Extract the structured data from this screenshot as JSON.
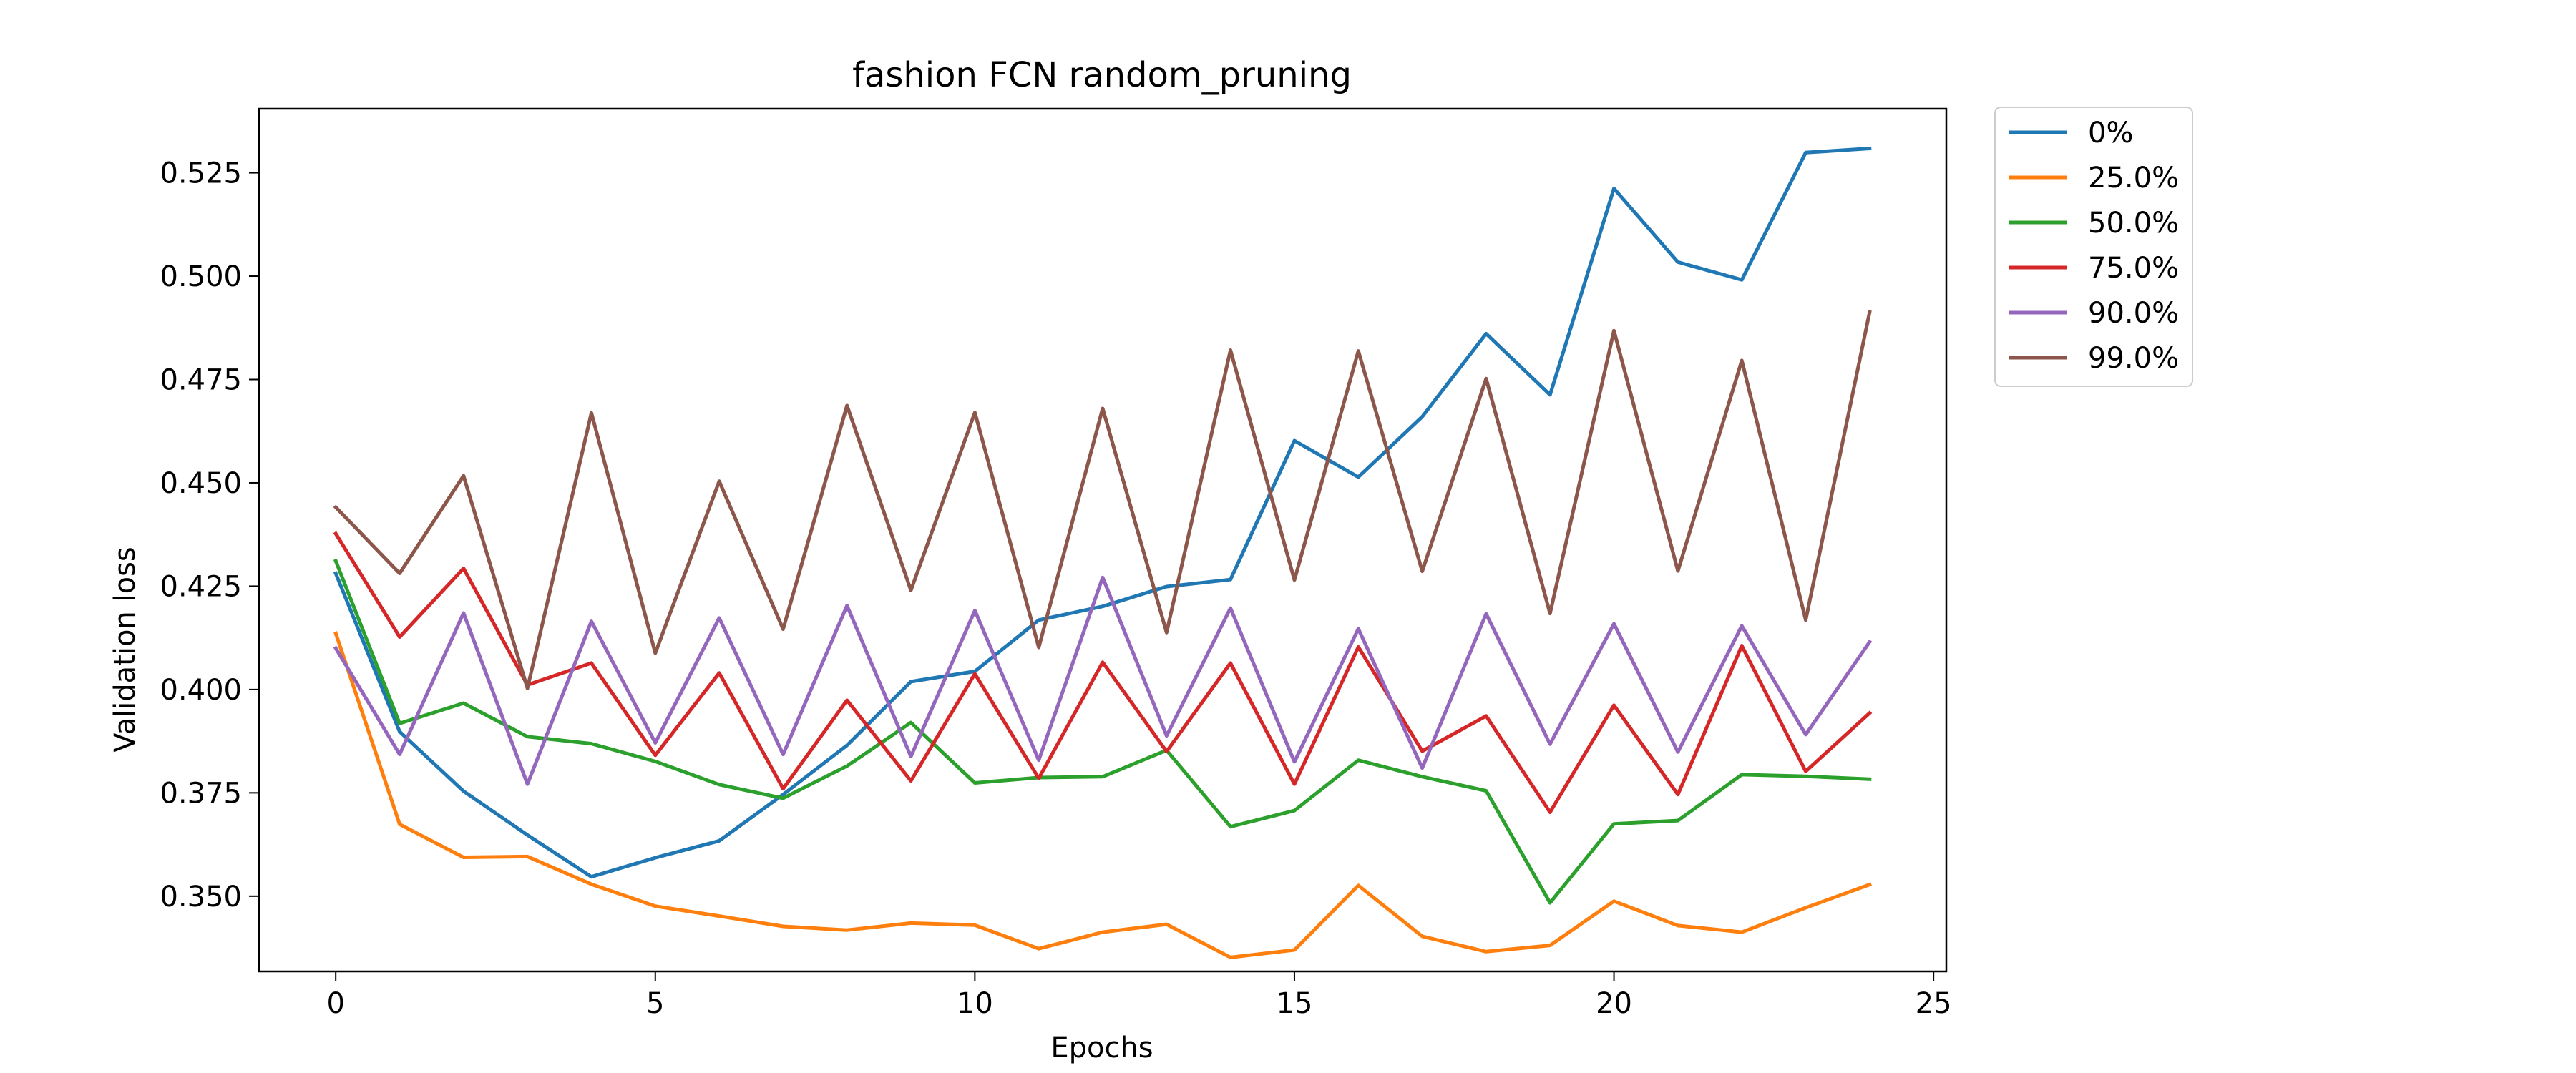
{
  "chart_data": {
    "type": "line",
    "title": "fashion FCN random_pruning",
    "xlabel": "Epochs",
    "ylabel": "Validation loss",
    "xlim": [
      -1.2,
      25.2
    ],
    "ylim": [
      0.3318,
      0.5405
    ],
    "xticks": [
      0,
      5,
      10,
      15,
      20,
      25
    ],
    "xtick_labels": [
      "0",
      "5",
      "10",
      "15",
      "20",
      "25"
    ],
    "yticks": [
      0.35,
      0.375,
      0.4,
      0.425,
      0.45,
      0.475,
      0.5,
      0.525
    ],
    "ytick_labels": [
      "0.350",
      "0.375",
      "0.400",
      "0.425",
      "0.450",
      "0.475",
      "0.500",
      "0.525"
    ],
    "grid": false,
    "legend_position": "outside-top-right",
    "x": [
      0,
      1,
      2,
      3,
      4,
      5,
      6,
      7,
      8,
      9,
      10,
      11,
      12,
      13,
      14,
      15,
      16,
      17,
      18,
      19,
      20,
      21,
      22,
      23,
      24
    ],
    "series": [
      {
        "name": "0%",
        "color": "#1f77b4",
        "values": [
          0.4281,
          0.3898,
          0.3754,
          0.3648,
          0.3547,
          0.3593,
          0.3634,
          0.3746,
          0.3865,
          0.4019,
          0.4044,
          0.4168,
          0.4201,
          0.4249,
          0.4266,
          0.4602,
          0.4514,
          0.466,
          0.4861,
          0.4713,
          0.5212,
          0.5034,
          0.4991,
          0.5299,
          0.5309
        ]
      },
      {
        "name": "25.0%",
        "color": "#ff7f0e",
        "values": [
          0.4136,
          0.3674,
          0.3594,
          0.3596,
          0.3529,
          0.3476,
          0.3452,
          0.3427,
          0.3418,
          0.3435,
          0.343,
          0.3373,
          0.3413,
          0.3432,
          0.3352,
          0.337,
          0.3526,
          0.3403,
          0.3366,
          0.3381,
          0.3488,
          0.3429,
          0.3413,
          0.3472,
          0.3528
        ]
      },
      {
        "name": "50.0%",
        "color": "#2ca02c",
        "values": [
          0.4311,
          0.3918,
          0.3967,
          0.3886,
          0.3869,
          0.3826,
          0.377,
          0.3737,
          0.3815,
          0.392,
          0.3774,
          0.3787,
          0.3789,
          0.3853,
          0.3668,
          0.3707,
          0.3829,
          0.3789,
          0.3755,
          0.3484,
          0.3675,
          0.3683,
          0.3794,
          0.379,
          0.3783
        ]
      },
      {
        "name": "75.0%",
        "color": "#d62728",
        "values": [
          0.4377,
          0.4127,
          0.4293,
          0.4011,
          0.4064,
          0.3841,
          0.404,
          0.376,
          0.3974,
          0.3779,
          0.4038,
          0.3785,
          0.4066,
          0.385,
          0.4064,
          0.3771,
          0.4103,
          0.3851,
          0.3936,
          0.3703,
          0.3962,
          0.3746,
          0.4106,
          0.3802,
          0.3943
        ]
      },
      {
        "name": "90.0%",
        "color": "#9467bd",
        "values": [
          0.41,
          0.3843,
          0.4185,
          0.3771,
          0.4165,
          0.3871,
          0.4173,
          0.3843,
          0.4203,
          0.3838,
          0.4191,
          0.3829,
          0.4271,
          0.3888,
          0.4197,
          0.3825,
          0.4147,
          0.381,
          0.4183,
          0.3868,
          0.4159,
          0.3849,
          0.4154,
          0.3891,
          0.4115
        ]
      },
      {
        "name": "99.0%",
        "color": "#8c564b",
        "values": [
          0.4441,
          0.4281,
          0.4517,
          0.4003,
          0.4669,
          0.4088,
          0.4504,
          0.4146,
          0.4687,
          0.424,
          0.467,
          0.4102,
          0.468,
          0.4138,
          0.4821,
          0.4265,
          0.4819,
          0.4286,
          0.4752,
          0.4184,
          0.4868,
          0.4287,
          0.4796,
          0.4168,
          0.4913
        ]
      }
    ]
  }
}
